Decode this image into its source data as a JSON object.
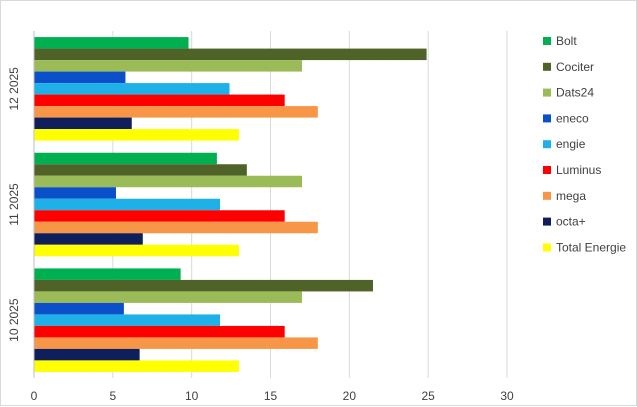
{
  "chart_data": {
    "type": "bar",
    "orientation": "horizontal",
    "categories": [
      "10 2025",
      "11 2025",
      "12 2025"
    ],
    "series": [
      {
        "name": "Bolt",
        "color": "#00b050",
        "values": [
          9.3,
          11.6,
          9.8
        ]
      },
      {
        "name": "Cociter",
        "color": "#4f6228",
        "values": [
          21.5,
          13.5,
          24.9
        ]
      },
      {
        "name": "Dats24",
        "color": "#9bbb59",
        "values": [
          17.0,
          17.0,
          17.0
        ]
      },
      {
        "name": "eneco",
        "color": "#0b4fc9",
        "values": [
          5.7,
          5.2,
          5.8
        ]
      },
      {
        "name": "engie",
        "color": "#1fb0e8",
        "values": [
          11.8,
          11.8,
          12.4
        ]
      },
      {
        "name": "Luminus",
        "color": "#ff0000",
        "values": [
          15.9,
          15.9,
          15.9
        ]
      },
      {
        "name": "mega",
        "color": "#f79646",
        "values": [
          18.0,
          18.0,
          18.0
        ]
      },
      {
        "name": "octa+",
        "color": "#0f1f5c",
        "values": [
          6.7,
          6.9,
          6.2
        ]
      },
      {
        "name": "Total Energie",
        "color": "#ffff00",
        "values": [
          13.0,
          13.0,
          13.0
        ]
      }
    ],
    "xticks": [
      "0",
      "5",
      "10",
      "15",
      "20",
      "25",
      "30"
    ],
    "xlim": [
      0,
      30
    ],
    "grid": "vertical",
    "legend_position": "right"
  }
}
